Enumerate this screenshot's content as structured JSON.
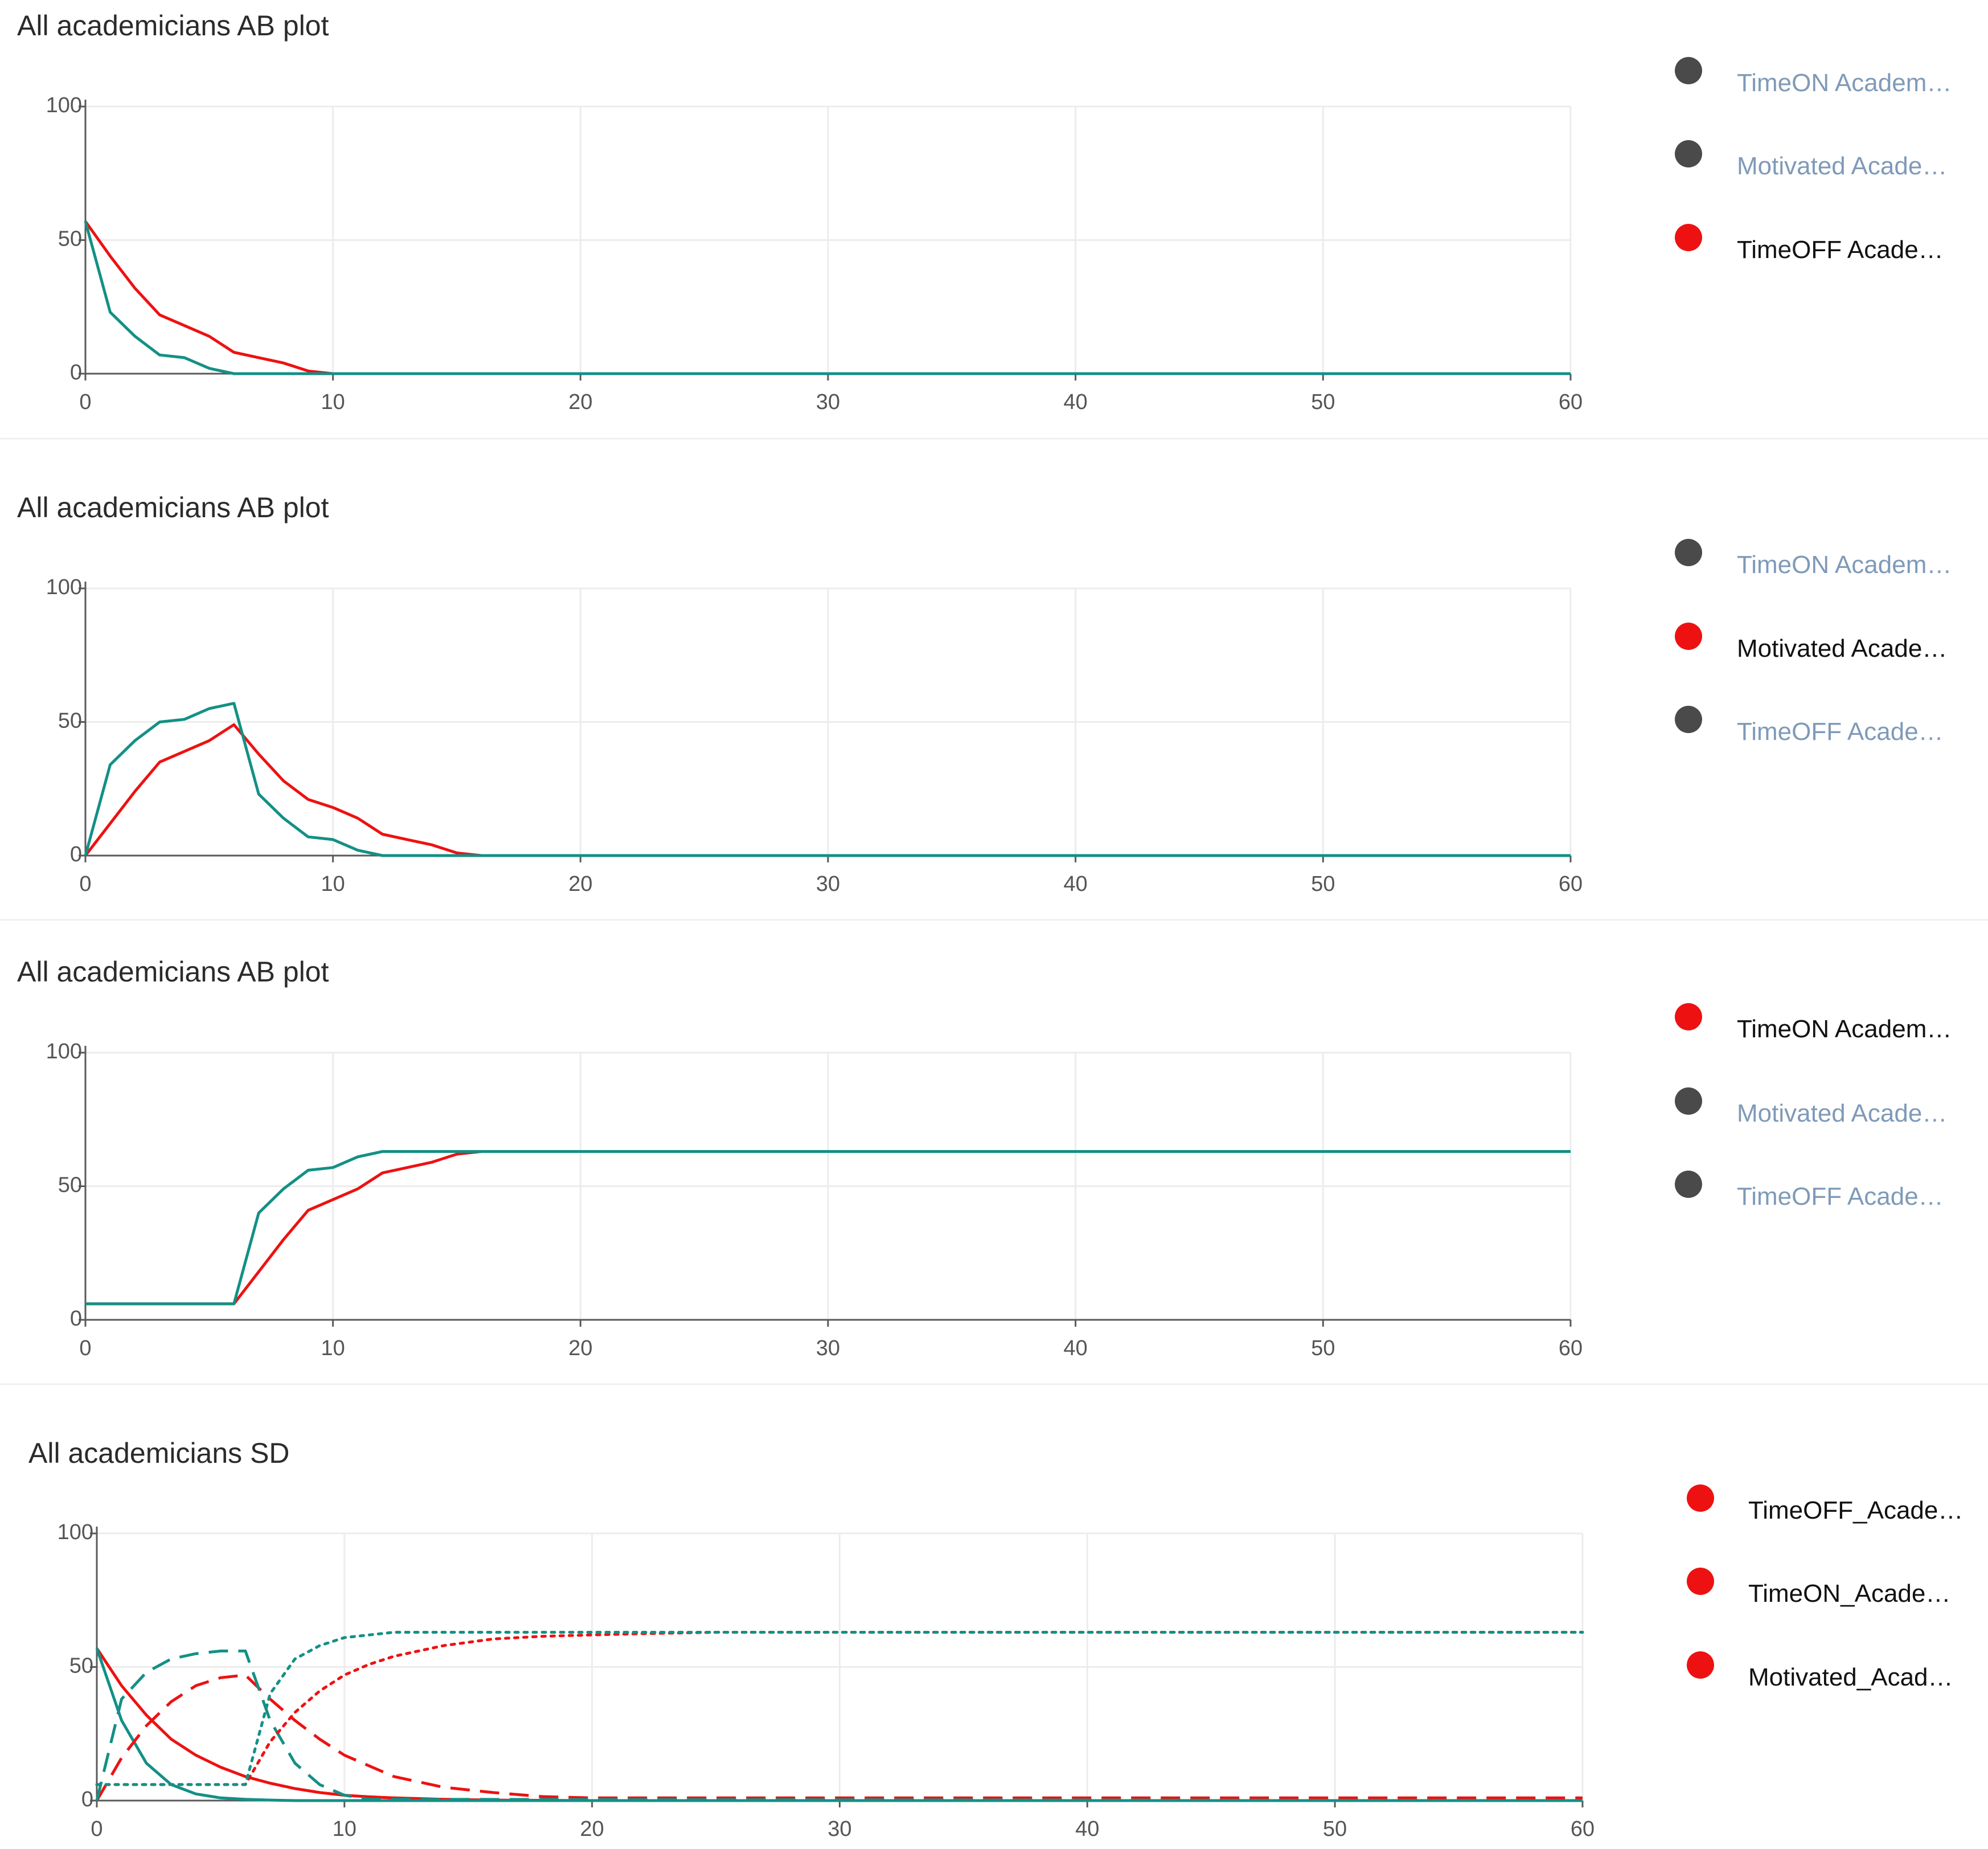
{
  "colors": {
    "red": "#ee1111",
    "teal": "#139086",
    "legend_active_dot": "#ee1111",
    "legend_inactive_dot": "#4a4a4a",
    "legend_active_text": "#111111",
    "legend_inactive_text": "#7f9ab8"
  },
  "chart_data": [
    {
      "type": "line",
      "title": "All academicians AB plot",
      "xlim": [
        0,
        60
      ],
      "ylim": [
        0,
        100
      ],
      "xticks": [
        "0",
        "10",
        "20",
        "30",
        "40",
        "50",
        "60"
      ],
      "yticks": [
        "0",
        "50",
        "100"
      ],
      "legend": [
        {
          "label": "TimeON Academ…",
          "active": false
        },
        {
          "label": "Motivated Acade…",
          "active": false
        },
        {
          "label": "TimeOFF Acade…",
          "active": true
        }
      ],
      "series": [
        {
          "name": "red",
          "color": "red",
          "dash": "solid",
          "x": [
            0,
            1,
            2,
            3,
            4,
            5,
            6,
            7,
            8,
            9,
            10,
            60
          ],
          "y": [
            57,
            44,
            32,
            22,
            18,
            14,
            8,
            6,
            4,
            1,
            0,
            0
          ]
        },
        {
          "name": "teal",
          "color": "teal",
          "dash": "solid",
          "x": [
            0,
            1,
            2,
            3,
            4,
            5,
            6,
            7,
            60
          ],
          "y": [
            57,
            23,
            14,
            7,
            6,
            2,
            0,
            0,
            0
          ]
        }
      ]
    },
    {
      "type": "line",
      "title": "All academicians AB plot",
      "xlim": [
        0,
        60
      ],
      "ylim": [
        0,
        100
      ],
      "xticks": [
        "0",
        "10",
        "20",
        "30",
        "40",
        "50",
        "60"
      ],
      "yticks": [
        "0",
        "50",
        "100"
      ],
      "legend": [
        {
          "label": "TimeON Academ…",
          "active": false
        },
        {
          "label": "Motivated Acade…",
          "active": true
        },
        {
          "label": "TimeOFF Acade…",
          "active": false
        }
      ],
      "series": [
        {
          "name": "red",
          "color": "red",
          "dash": "solid",
          "x": [
            0,
            1,
            2,
            3,
            4,
            5,
            6,
            7,
            8,
            9,
            10,
            11,
            12,
            13,
            14,
            15,
            16,
            60
          ],
          "y": [
            0,
            12,
            24,
            35,
            39,
            43,
            49,
            38,
            28,
            21,
            18,
            14,
            8,
            6,
            4,
            1,
            0,
            0
          ]
        },
        {
          "name": "teal",
          "color": "teal",
          "dash": "solid",
          "x": [
            0,
            1,
            2,
            3,
            4,
            5,
            6,
            7,
            8,
            9,
            10,
            11,
            12,
            60
          ],
          "y": [
            0,
            34,
            43,
            50,
            51,
            55,
            57,
            23,
            14,
            7,
            6,
            2,
            0,
            0
          ]
        }
      ]
    },
    {
      "type": "line",
      "title": "All academicians AB plot",
      "xlim": [
        0,
        60
      ],
      "ylim": [
        0,
        100
      ],
      "xticks": [
        "0",
        "10",
        "20",
        "30",
        "40",
        "50",
        "60"
      ],
      "yticks": [
        "0",
        "50",
        "100"
      ],
      "legend": [
        {
          "label": "TimeON Academ…",
          "active": true
        },
        {
          "label": "Motivated Acade…",
          "active": false
        },
        {
          "label": "TimeOFF Acade…",
          "active": false
        }
      ],
      "series": [
        {
          "name": "red",
          "color": "red",
          "dash": "solid",
          "x": [
            0,
            6,
            7,
            8,
            9,
            10,
            11,
            12,
            13,
            14,
            15,
            16,
            60
          ],
          "y": [
            6,
            6,
            18,
            30,
            41,
            45,
            49,
            55,
            57,
            59,
            62,
            63,
            63
          ]
        },
        {
          "name": "teal",
          "color": "teal",
          "dash": "solid",
          "x": [
            0,
            6,
            7,
            8,
            9,
            10,
            11,
            12,
            60
          ],
          "y": [
            6,
            6,
            40,
            49,
            56,
            57,
            61,
            63,
            63
          ]
        }
      ]
    },
    {
      "type": "line",
      "title": "All academicians SD",
      "xlim": [
        0,
        60
      ],
      "ylim": [
        0,
        100
      ],
      "xticks": [
        "0",
        "10",
        "20",
        "30",
        "40",
        "50",
        "60"
      ],
      "yticks": [
        "0",
        "50",
        "100"
      ],
      "legend": [
        {
          "label": "TimeOFF_Acade…",
          "active": true
        },
        {
          "label": "TimeON_Acade…",
          "active": true
        },
        {
          "label": "Motivated_Acad…",
          "active": true
        }
      ],
      "series": [
        {
          "name": "TimeOFF red",
          "color": "red",
          "dash": "solid",
          "x": [
            0,
            1,
            2,
            3,
            4,
            5,
            6,
            7,
            8,
            9,
            10,
            11,
            12,
            14,
            16,
            20,
            60
          ],
          "y": [
            57,
            43,
            32,
            23,
            17,
            12.5,
            9,
            6.5,
            4.5,
            3,
            2,
            1.4,
            1,
            0.5,
            0.2,
            0,
            0
          ]
        },
        {
          "name": "TimeOFF teal",
          "color": "teal",
          "dash": "solid",
          "x": [
            0,
            1,
            2,
            3,
            4,
            5,
            6,
            7,
            8,
            60
          ],
          "y": [
            57,
            30,
            14,
            6,
            2.5,
            1,
            0.5,
            0.2,
            0,
            0
          ]
        },
        {
          "name": "Motivated red",
          "color": "red",
          "dash": "dashed",
          "x": [
            0,
            1,
            2,
            3,
            4,
            5,
            6,
            7,
            8,
            9,
            10,
            12,
            14,
            16,
            18,
            20,
            60
          ],
          "y": [
            0,
            16,
            28,
            37,
            43,
            46,
            47,
            38,
            30,
            23,
            17,
            9,
            5,
            3,
            1.5,
            1,
            1
          ]
        },
        {
          "name": "Motivated teal",
          "color": "teal",
          "dash": "dashed",
          "x": [
            0,
            1,
            2,
            3,
            4,
            5,
            6,
            7,
            8,
            9,
            10,
            11,
            60
          ],
          "y": [
            0,
            38,
            48,
            53,
            55,
            56,
            56,
            30,
            14,
            6,
            2,
            0.5,
            0
          ]
        },
        {
          "name": "TimeON red",
          "color": "red",
          "dash": "dotted",
          "x": [
            0,
            6,
            7,
            8,
            9,
            10,
            11,
            12,
            14,
            16,
            18,
            20,
            22,
            25,
            60
          ],
          "y": [
            6,
            6,
            22,
            33,
            41,
            47,
            51,
            54,
            58,
            60.5,
            61.5,
            62,
            62.5,
            63,
            63
          ]
        },
        {
          "name": "TimeON teal",
          "color": "teal",
          "dash": "dotted",
          "x": [
            0,
            6,
            7,
            8,
            9,
            10,
            11,
            12,
            14,
            60
          ],
          "y": [
            6,
            6,
            40,
            53,
            58,
            61,
            62,
            63,
            63,
            63
          ]
        }
      ]
    }
  ]
}
